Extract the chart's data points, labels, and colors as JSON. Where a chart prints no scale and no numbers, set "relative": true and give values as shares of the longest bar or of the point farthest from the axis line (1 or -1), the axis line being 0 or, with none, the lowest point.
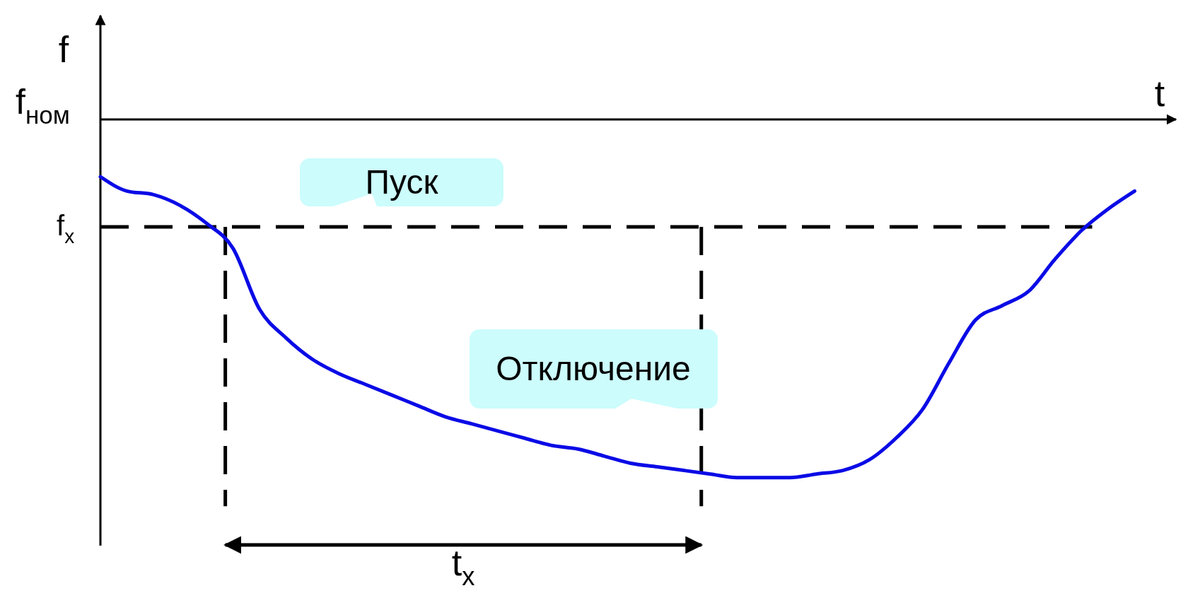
{
  "chart_data": {
    "type": "line",
    "relative": true,
    "xlabel": "t",
    "ylabel": "f",
    "categories": [
      null,
      null,
      null,
      null,
      null,
      null,
      null,
      null,
      null,
      null,
      null,
      null,
      null,
      null,
      null,
      null,
      null,
      null,
      null,
      null,
      null,
      null,
      null,
      null,
      null,
      null,
      null,
      null,
      null,
      null,
      null,
      null,
      null,
      null,
      null,
      null,
      null,
      null,
      null,
      null
    ],
    "series": [
      {
        "color": "#0a0ae6",
        "values": [
          -0.16,
          -0.2,
          -0.21,
          -0.24,
          -0.29,
          -0.36,
          -0.53,
          -0.61,
          -0.67,
          -0.71,
          -0.74,
          -0.77,
          -0.8,
          -0.83,
          -0.85,
          -0.87,
          -0.89,
          -0.91,
          -0.92,
          -0.94,
          -0.96,
          -0.97,
          -0.98,
          -0.99,
          -1,
          -1,
          -1,
          -0.99,
          -0.98,
          -0.95,
          -0.89,
          -0.81,
          -0.68,
          -0.56,
          -0.52,
          -0.48,
          -0.39,
          -0.31,
          -0.25,
          -0.2
        ]
      }
    ],
    "line_style": "solid",
    "ref_lines": [
      {
        "axis": "y",
        "value": -0.3,
        "label": "f$_{x}$",
        "color": "#000000",
        "line_style": "dashed"
      }
    ],
    "annotations": [
      "f$_{ном}$",
      "Пуск",
      "Отключение",
      "t$_{x}$"
    ]
  }
}
